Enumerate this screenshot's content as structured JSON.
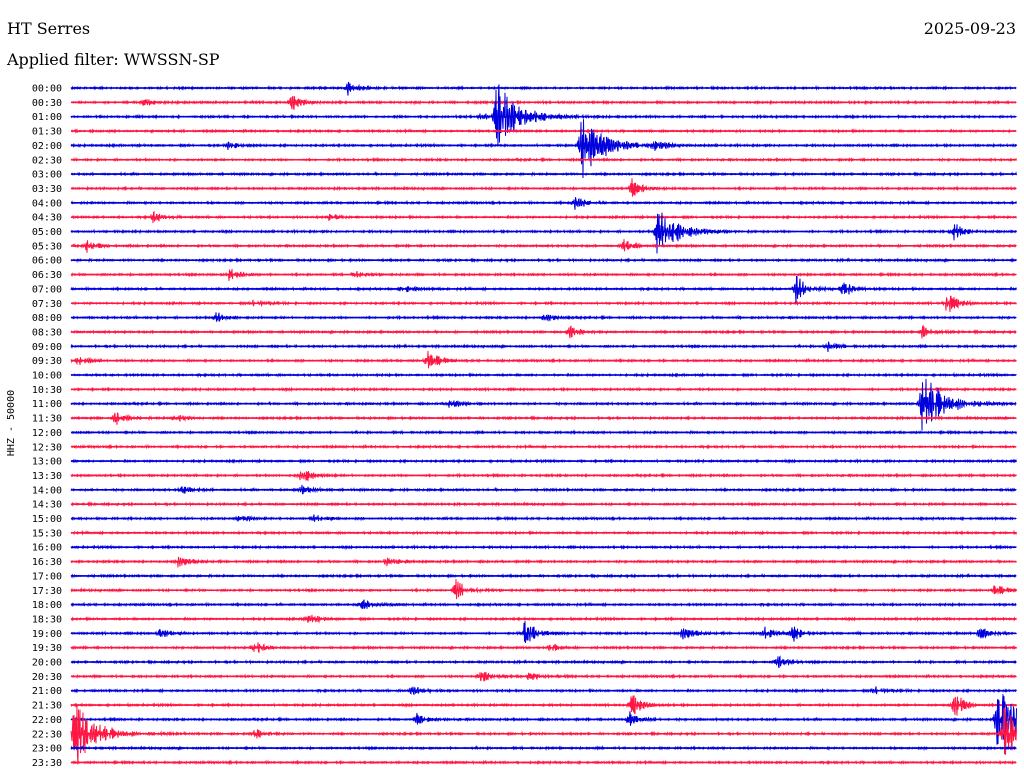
{
  "header": {
    "station": "HT Serres",
    "date": "2025-09-23",
    "filter": "Applied filter: WWSSN-SP",
    "channel_label": "HHZ - 50000"
  },
  "colors": {
    "even_trace": "#0000dd",
    "odd_trace": "#ff1744"
  },
  "chart_data": {
    "type": "helicorder",
    "title": "HT Serres",
    "ylabel": "HHZ - 50000",
    "row_labels": [
      "00:00",
      "00:30",
      "01:00",
      "01:30",
      "02:00",
      "02:30",
      "03:00",
      "03:30",
      "04:00",
      "04:30",
      "05:00",
      "05:30",
      "06:00",
      "06:30",
      "07:00",
      "07:30",
      "08:00",
      "08:30",
      "09:00",
      "09:30",
      "10:00",
      "10:30",
      "11:00",
      "11:30",
      "12:00",
      "12:30",
      "13:00",
      "13:30",
      "14:00",
      "14:30",
      "15:00",
      "15:30",
      "16:00",
      "16:30",
      "17:00",
      "17:30",
      "18:00",
      "18:30",
      "19:00",
      "19:30",
      "20:00",
      "20:30",
      "21:00",
      "21:30",
      "22:00",
      "22:30",
      "23:00",
      "23:30"
    ],
    "row_minutes": 30,
    "events": [
      {
        "row": 0,
        "minute": 8.8,
        "amplitude": 0.6
      },
      {
        "row": 1,
        "minute": 2.3,
        "amplitude": 0.3
      },
      {
        "row": 1,
        "minute": 7.0,
        "amplitude": 0.7
      },
      {
        "row": 2,
        "minute": 13.5,
        "amplitude": 3.0
      },
      {
        "row": 2,
        "minute": 13.0,
        "amplitude": 0.4
      },
      {
        "row": 4,
        "minute": 16.2,
        "amplitude": 3.0
      },
      {
        "row": 4,
        "minute": 5.0,
        "amplitude": 0.4
      },
      {
        "row": 4,
        "minute": 18.5,
        "amplitude": 0.5
      },
      {
        "row": 7,
        "minute": 17.8,
        "amplitude": 0.8
      },
      {
        "row": 8,
        "minute": 16.0,
        "amplitude": 0.6
      },
      {
        "row": 9,
        "minute": 2.6,
        "amplitude": 0.5
      },
      {
        "row": 9,
        "minute": 8.2,
        "amplitude": 0.3
      },
      {
        "row": 10,
        "minute": 18.6,
        "amplitude": 2.5
      },
      {
        "row": 10,
        "minute": 28.0,
        "amplitude": 0.9
      },
      {
        "row": 11,
        "minute": 0.5,
        "amplitude": 0.5
      },
      {
        "row": 11,
        "minute": 17.5,
        "amplitude": 0.6
      },
      {
        "row": 13,
        "minute": 5.0,
        "amplitude": 0.6
      },
      {
        "row": 13,
        "minute": 9.0,
        "amplitude": 0.3
      },
      {
        "row": 14,
        "minute": 23.0,
        "amplitude": 1.3
      },
      {
        "row": 14,
        "minute": 24.5,
        "amplitude": 0.9
      },
      {
        "row": 14,
        "minute": 10.5,
        "amplitude": 0.4
      },
      {
        "row": 15,
        "minute": 27.8,
        "amplitude": 1.0
      },
      {
        "row": 15,
        "minute": 5.8,
        "amplitude": 0.4
      },
      {
        "row": 16,
        "minute": 4.6,
        "amplitude": 0.6
      },
      {
        "row": 16,
        "minute": 15.0,
        "amplitude": 0.4
      },
      {
        "row": 17,
        "minute": 15.8,
        "amplitude": 0.6
      },
      {
        "row": 17,
        "minute": 27.0,
        "amplitude": 0.5
      },
      {
        "row": 18,
        "minute": 24.0,
        "amplitude": 0.5
      },
      {
        "row": 19,
        "minute": 11.3,
        "amplitude": 1.2
      },
      {
        "row": 19,
        "minute": 0.2,
        "amplitude": 0.4
      },
      {
        "row": 22,
        "minute": 27.0,
        "amplitude": 3.0
      },
      {
        "row": 22,
        "minute": 12.0,
        "amplitude": 0.4
      },
      {
        "row": 23,
        "minute": 1.4,
        "amplitude": 0.6
      },
      {
        "row": 23,
        "minute": 3.3,
        "amplitude": 0.4
      },
      {
        "row": 27,
        "minute": 7.3,
        "amplitude": 1.0
      },
      {
        "row": 28,
        "minute": 3.5,
        "amplitude": 0.4
      },
      {
        "row": 28,
        "minute": 7.3,
        "amplitude": 0.4
      },
      {
        "row": 30,
        "minute": 5.3,
        "amplitude": 0.4
      },
      {
        "row": 30,
        "minute": 7.7,
        "amplitude": 0.4
      },
      {
        "row": 33,
        "minute": 3.4,
        "amplitude": 0.5
      },
      {
        "row": 33,
        "minute": 10.0,
        "amplitude": 0.4
      },
      {
        "row": 35,
        "minute": 12.2,
        "amplitude": 1.0
      },
      {
        "row": 35,
        "minute": 29.3,
        "amplitude": 0.6
      },
      {
        "row": 36,
        "minute": 9.2,
        "amplitude": 0.6
      },
      {
        "row": 37,
        "minute": 7.5,
        "amplitude": 0.5
      },
      {
        "row": 38,
        "minute": 14.4,
        "amplitude": 1.4
      },
      {
        "row": 38,
        "minute": 2.8,
        "amplitude": 0.5
      },
      {
        "row": 38,
        "minute": 19.4,
        "amplitude": 0.6
      },
      {
        "row": 38,
        "minute": 22.0,
        "amplitude": 0.7
      },
      {
        "row": 38,
        "minute": 22.9,
        "amplitude": 0.8
      },
      {
        "row": 38,
        "minute": 28.8,
        "amplitude": 0.6
      },
      {
        "row": 39,
        "minute": 5.8,
        "amplitude": 0.6
      },
      {
        "row": 39,
        "minute": 15.2,
        "amplitude": 0.4
      },
      {
        "row": 40,
        "minute": 22.4,
        "amplitude": 0.6
      },
      {
        "row": 41,
        "minute": 13.0,
        "amplitude": 0.6
      },
      {
        "row": 41,
        "minute": 14.5,
        "amplitude": 0.4
      },
      {
        "row": 42,
        "minute": 10.8,
        "amplitude": 0.5
      },
      {
        "row": 42,
        "minute": 25.5,
        "amplitude": 0.4
      },
      {
        "row": 43,
        "minute": 17.8,
        "amplitude": 1.0
      },
      {
        "row": 43,
        "minute": 28.0,
        "amplitude": 1.4
      },
      {
        "row": 44,
        "minute": 11.0,
        "amplitude": 0.6
      },
      {
        "row": 44,
        "minute": 17.7,
        "amplitude": 0.8
      },
      {
        "row": 44,
        "minute": 29.4,
        "amplitude": 3.0
      },
      {
        "row": 45,
        "minute": 0.1,
        "amplitude": 3.0
      },
      {
        "row": 45,
        "minute": 5.8,
        "amplitude": 0.5
      },
      {
        "row": 45,
        "minute": 29.6,
        "amplitude": 2.5
      }
    ]
  }
}
